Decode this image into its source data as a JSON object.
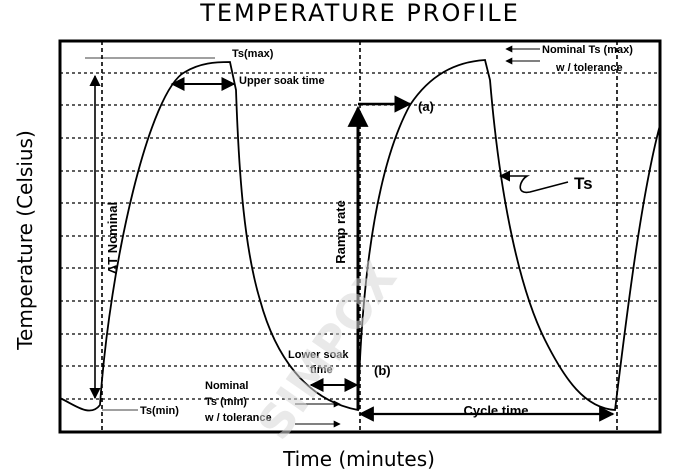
{
  "chart_data": {
    "type": "line",
    "title": "TEMPERATURE PROFILE",
    "xlabel": "Time (minutes)",
    "ylabel": "Temperature (Celsius)",
    "grid": true,
    "watermark": "SIMPOX",
    "annotations": {
      "ts_max": "Ts(max)",
      "upper_soak": "Upper soak time",
      "nominal_max_1": "Nominal Ts (max)",
      "nominal_max_2": "w / tolerance",
      "a": "(a)",
      "b": "(b)",
      "ts": "Ts",
      "ramp_rate": "Ramp rate",
      "delta_t": "ΔT Nominal",
      "lower_soak_1": "Lower soak",
      "lower_soak_2": "time",
      "nominal_min_1": "Nominal",
      "nominal_min_2": "Ts (min)",
      "nominal_min_3": "w / tolerance",
      "ts_min": "Ts(min)",
      "cycle_time": "Cycle time"
    }
  }
}
